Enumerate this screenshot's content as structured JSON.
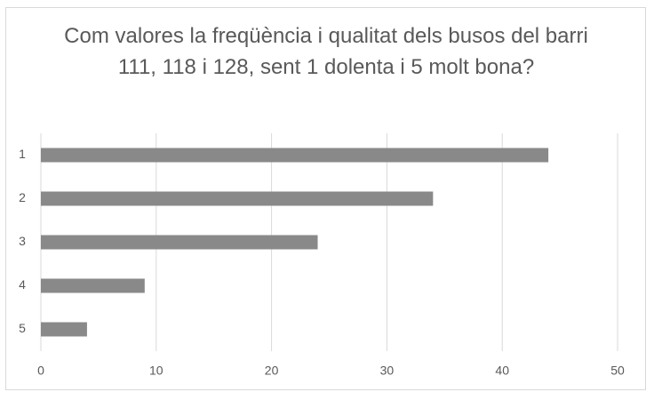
{
  "chart_data": {
    "type": "bar",
    "orientation": "horizontal",
    "title": "Com valores la freqüència i qualitat dels busos del barri 111, 118 i 128, sent 1 dolenta i 5 molt bona?",
    "categories": [
      "1",
      "2",
      "3",
      "4",
      "5"
    ],
    "values": [
      44,
      34,
      24,
      9,
      4
    ],
    "color": "#898989",
    "xlim": [
      0,
      50
    ],
    "xticks": [
      0,
      10,
      20,
      30,
      40,
      50
    ],
    "grid": true
  }
}
